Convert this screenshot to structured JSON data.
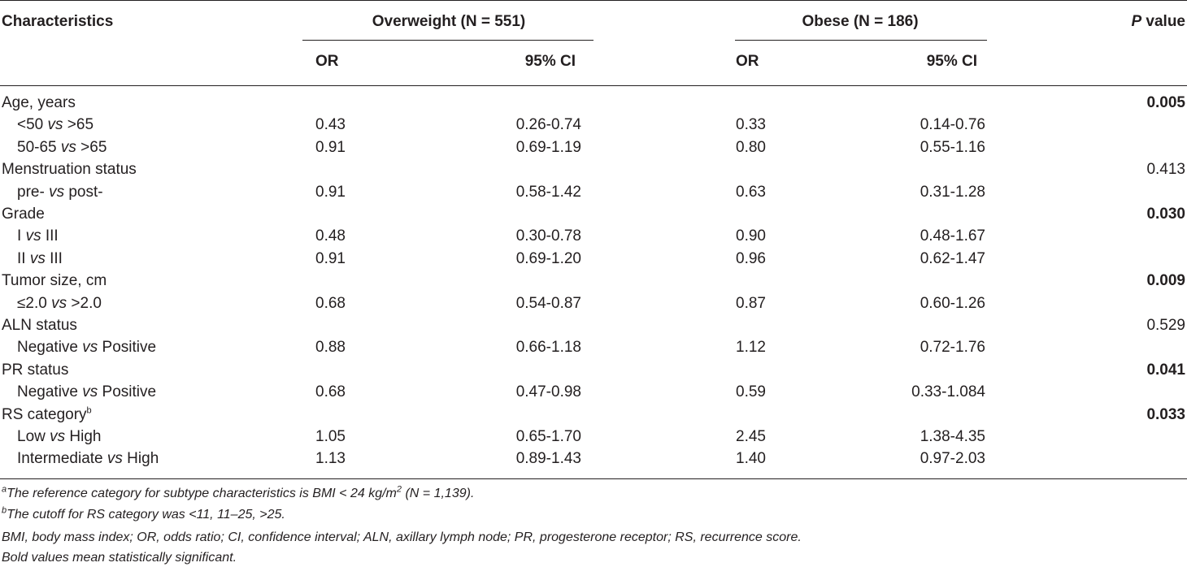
{
  "header": {
    "characteristics": "Characteristics",
    "overweight": "Overweight (N = 551)",
    "obese": "Obese (N = 186)",
    "p_value_italic": "P",
    "p_value_rest": " value",
    "or": "OR",
    "ci": "95% CI"
  },
  "vs": "vs",
  "rows": [
    {
      "type": "group",
      "label": "Age, years",
      "p": "0.005",
      "bold": true
    },
    {
      "type": "item",
      "a": "<50 ",
      "b": " >65",
      "ow_or": "0.43",
      "ow_ci": "0.26-0.74",
      "ob_or": "0.33",
      "ob_ci": "0.14-0.76"
    },
    {
      "type": "item",
      "a": "50-65 ",
      "b": " >65",
      "ow_or": "0.91",
      "ow_ci": "0.69-1.19",
      "ob_or": "0.80",
      "ob_ci": "0.55-1.16"
    },
    {
      "type": "group",
      "label": "Menstruation status",
      "p": "0.413",
      "bold": false
    },
    {
      "type": "item",
      "a": "pre- ",
      "b": " post-",
      "ow_or": "0.91",
      "ow_ci": "0.58-1.42",
      "ob_or": "0.63",
      "ob_ci": "0.31-1.28"
    },
    {
      "type": "group",
      "label": "Grade",
      "p": "0.030",
      "bold": true
    },
    {
      "type": "item",
      "a": "I ",
      "b": " III",
      "ow_or": "0.48",
      "ow_ci": "0.30-0.78",
      "ob_or": "0.90",
      "ob_ci": "0.48-1.67"
    },
    {
      "type": "item",
      "a": "II ",
      "b": " III",
      "ow_or": "0.91",
      "ow_ci": "0.69-1.20",
      "ob_or": "0.96",
      "ob_ci": "0.62-1.47"
    },
    {
      "type": "group",
      "label": "Tumor size, cm",
      "p": "0.009",
      "bold": true
    },
    {
      "type": "item",
      "a": "≤2.0 ",
      "b": " >2.0",
      "ow_or": "0.68",
      "ow_ci": "0.54-0.87",
      "ob_or": "0.87",
      "ob_ci": "0.60-1.26"
    },
    {
      "type": "group",
      "label": "ALN status",
      "p": "0.529",
      "bold": false
    },
    {
      "type": "item",
      "a": "Negative ",
      "b": " Positive",
      "ow_or": "0.88",
      "ow_ci": "0.66-1.18",
      "ob_or": "1.12",
      "ob_ci": "0.72-1.76"
    },
    {
      "type": "group",
      "label": "PR status",
      "p": "0.041",
      "bold": true
    },
    {
      "type": "item",
      "a": "Negative ",
      "b": " Positive",
      "ow_or": "0.68",
      "ow_ci": "0.47-0.98",
      "ob_or": "0.59",
      "ob_ci": "0.33-1.084"
    },
    {
      "type": "group",
      "label": "RS category",
      "sup": "b",
      "p": "0.033",
      "bold": true
    },
    {
      "type": "item",
      "a": "Low ",
      "b": " High",
      "ow_or": "1.05",
      "ow_ci": "0.65-1.70",
      "ob_or": "2.45",
      "ob_ci": "1.38-4.35"
    },
    {
      "type": "item",
      "a": "Intermediate ",
      "b": " High",
      "ow_or": "1.13",
      "ow_ci": "0.89-1.43",
      "ob_or": "1.40",
      "ob_ci": "0.97-2.03"
    }
  ],
  "footnotes": {
    "a_sup": "a",
    "a_text1": "The reference category for subtype characteristics is BMI < 24 kg/m",
    "a_sup2": "2",
    "a_text2": " (N = 1,139).",
    "b_sup": "b",
    "b_text": "The cutoff for RS category was <11, 11–25, >25.",
    "abbrev": "BMI, body mass index; OR, odds ratio; CI, confidence interval; ALN, axillary lymph node; PR, progesterone receptor; RS, recurrence score.",
    "bold_note": "Bold values mean statistically significant."
  }
}
